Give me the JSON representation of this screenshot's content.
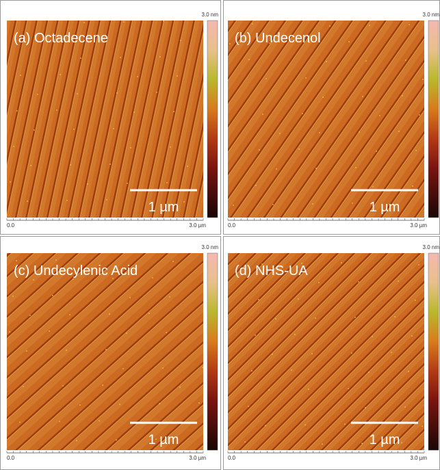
{
  "panels": [
    {
      "label": "(a) Octadecene",
      "scale_bar": "1 µm",
      "colorbar_max": "3.0 nm",
      "x_min": "0.0",
      "x_max": "3.0 µm"
    },
    {
      "label": "(b) Undecenol",
      "scale_bar": "1 µm",
      "colorbar_max": "3.0 nm",
      "x_min": "0.0",
      "x_max": "3.0 µm"
    },
    {
      "label": "(c) Undecylenic Acid",
      "scale_bar": "1 µm",
      "colorbar_max": "3.0 nm",
      "x_min": "0.0",
      "x_max": "3.0 µm"
    },
    {
      "label": "(d) NHS-UA",
      "scale_bar": "1 µm",
      "colorbar_max": "3.0 nm",
      "x_min": "0.0",
      "x_max": "3.0 µm"
    }
  ]
}
